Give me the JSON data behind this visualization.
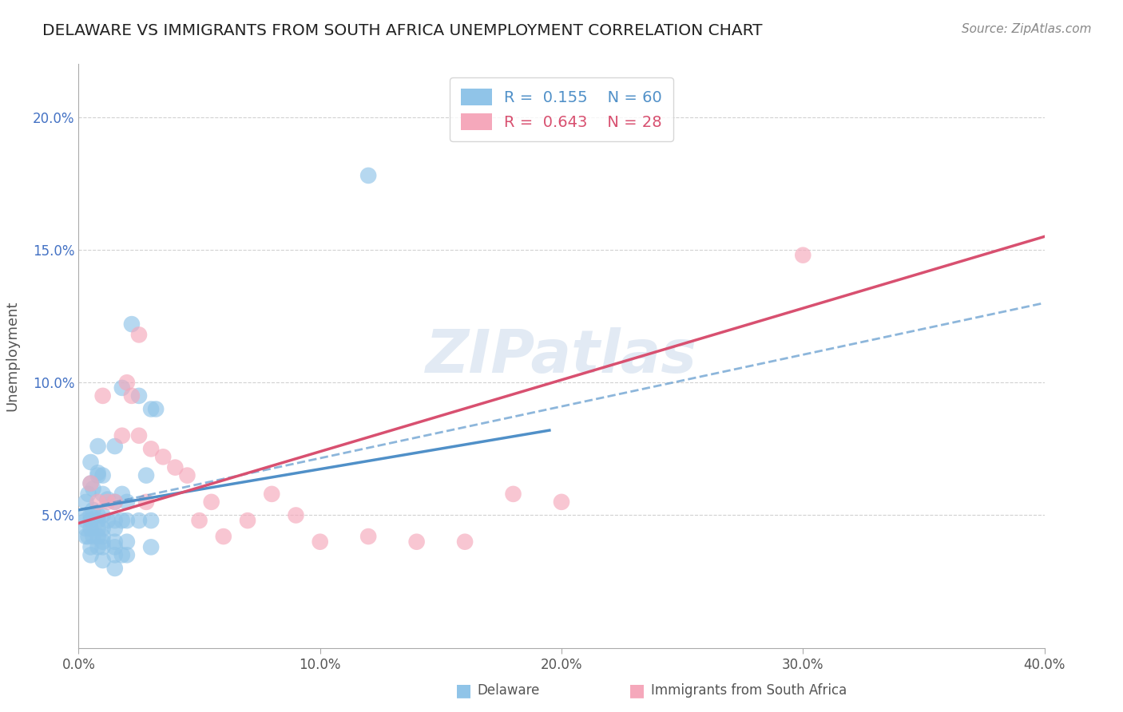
{
  "title": "DELAWARE VS IMMIGRANTS FROM SOUTH AFRICA UNEMPLOYMENT CORRELATION CHART",
  "source_text": "Source: ZipAtlas.com",
  "ylabel": "Unemployment",
  "xlim": [
    0.0,
    0.4
  ],
  "ylim": [
    0.0,
    0.22
  ],
  "yticks": [
    0.05,
    0.1,
    0.15,
    0.2
  ],
  "ytick_labels": [
    "5.0%",
    "10.0%",
    "15.0%",
    "20.0%"
  ],
  "xticks": [
    0.0,
    0.1,
    0.2,
    0.3,
    0.4
  ],
  "xtick_labels": [
    "0.0%",
    "10.0%",
    "20.0%",
    "30.0%",
    "40.0%"
  ],
  "legend_r1": "R =  0.155",
  "legend_n1": "N = 60",
  "legend_r2": "R =  0.643",
  "legend_n2": "N = 28",
  "color_blue": "#90c4e8",
  "color_pink": "#f5a8bb",
  "color_blue_line": "#5090c8",
  "color_pink_line": "#d85070",
  "watermark": "ZIPatlas",
  "delaware_points": [
    [
      0.003,
      0.055
    ],
    [
      0.003,
      0.05
    ],
    [
      0.003,
      0.048
    ],
    [
      0.003,
      0.045
    ],
    [
      0.003,
      0.042
    ],
    [
      0.004,
      0.058
    ],
    [
      0.004,
      0.042
    ],
    [
      0.005,
      0.07
    ],
    [
      0.005,
      0.062
    ],
    [
      0.005,
      0.05
    ],
    [
      0.005,
      0.048
    ],
    [
      0.005,
      0.045
    ],
    [
      0.005,
      0.038
    ],
    [
      0.005,
      0.035
    ],
    [
      0.006,
      0.06
    ],
    [
      0.006,
      0.052
    ],
    [
      0.006,
      0.042
    ],
    [
      0.008,
      0.076
    ],
    [
      0.008,
      0.066
    ],
    [
      0.008,
      0.065
    ],
    [
      0.008,
      0.05
    ],
    [
      0.008,
      0.048
    ],
    [
      0.008,
      0.045
    ],
    [
      0.008,
      0.042
    ],
    [
      0.008,
      0.038
    ],
    [
      0.01,
      0.065
    ],
    [
      0.01,
      0.058
    ],
    [
      0.01,
      0.05
    ],
    [
      0.01,
      0.045
    ],
    [
      0.01,
      0.042
    ],
    [
      0.01,
      0.04
    ],
    [
      0.01,
      0.038
    ],
    [
      0.01,
      0.033
    ],
    [
      0.012,
      0.056
    ],
    [
      0.012,
      0.048
    ],
    [
      0.015,
      0.076
    ],
    [
      0.015,
      0.055
    ],
    [
      0.015,
      0.048
    ],
    [
      0.015,
      0.045
    ],
    [
      0.015,
      0.04
    ],
    [
      0.015,
      0.038
    ],
    [
      0.015,
      0.035
    ],
    [
      0.015,
      0.03
    ],
    [
      0.018,
      0.098
    ],
    [
      0.018,
      0.058
    ],
    [
      0.018,
      0.048
    ],
    [
      0.018,
      0.035
    ],
    [
      0.02,
      0.055
    ],
    [
      0.02,
      0.048
    ],
    [
      0.02,
      0.04
    ],
    [
      0.02,
      0.035
    ],
    [
      0.022,
      0.122
    ],
    [
      0.025,
      0.095
    ],
    [
      0.025,
      0.048
    ],
    [
      0.028,
      0.065
    ],
    [
      0.03,
      0.09
    ],
    [
      0.03,
      0.048
    ],
    [
      0.03,
      0.038
    ],
    [
      0.032,
      0.09
    ],
    [
      0.12,
      0.178
    ]
  ],
  "sa_points": [
    [
      0.005,
      0.062
    ],
    [
      0.008,
      0.055
    ],
    [
      0.01,
      0.095
    ],
    [
      0.012,
      0.055
    ],
    [
      0.015,
      0.055
    ],
    [
      0.018,
      0.08
    ],
    [
      0.02,
      0.1
    ],
    [
      0.022,
      0.095
    ],
    [
      0.025,
      0.08
    ],
    [
      0.028,
      0.055
    ],
    [
      0.03,
      0.075
    ],
    [
      0.035,
      0.072
    ],
    [
      0.04,
      0.068
    ],
    [
      0.045,
      0.065
    ],
    [
      0.05,
      0.048
    ],
    [
      0.055,
      0.055
    ],
    [
      0.06,
      0.042
    ],
    [
      0.07,
      0.048
    ],
    [
      0.08,
      0.058
    ],
    [
      0.09,
      0.05
    ],
    [
      0.1,
      0.04
    ],
    [
      0.12,
      0.042
    ],
    [
      0.14,
      0.04
    ],
    [
      0.16,
      0.04
    ],
    [
      0.18,
      0.058
    ],
    [
      0.2,
      0.055
    ],
    [
      0.3,
      0.148
    ],
    [
      0.025,
      0.118
    ]
  ],
  "blue_solid_line": [
    [
      0.0,
      0.052
    ],
    [
      0.195,
      0.082
    ]
  ],
  "pink_solid_line": [
    [
      0.0,
      0.047
    ],
    [
      0.4,
      0.155
    ]
  ],
  "blue_dashed_line": [
    [
      0.0,
      0.052
    ],
    [
      0.4,
      0.13
    ]
  ]
}
